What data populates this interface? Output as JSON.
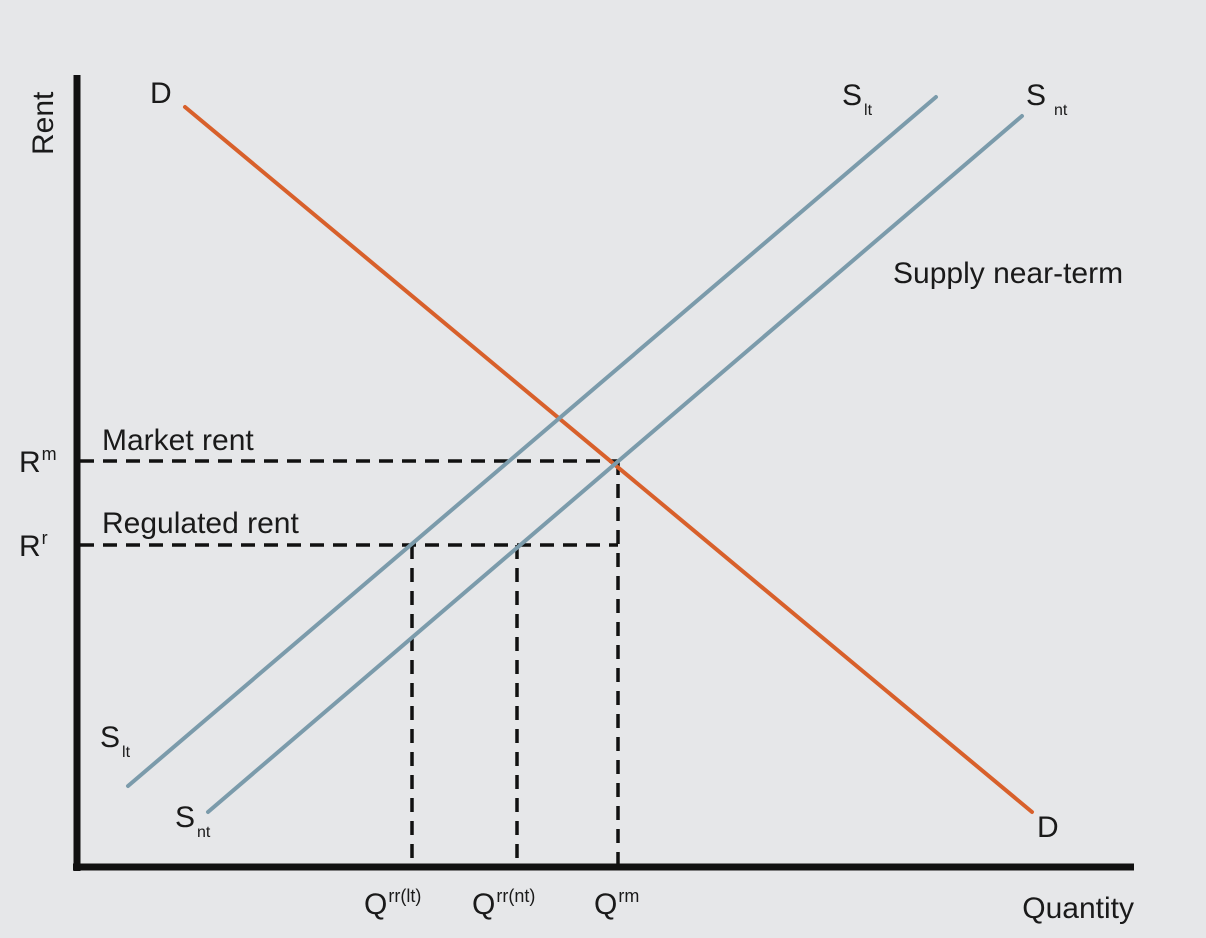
{
  "axes": {
    "y_label": "Rent",
    "x_label": "Quantity"
  },
  "colors": {
    "demand": "#d8602b",
    "supply": "#7b9bab",
    "axis": "#111111",
    "background": "#e6e7e9"
  },
  "curves": {
    "demand": {
      "main": "D",
      "sub": ""
    },
    "supply_long_term": {
      "main": "S",
      "sub": "lt"
    },
    "supply_near_term": {
      "main": "S",
      "sub": "nt"
    }
  },
  "annotations": {
    "supply_near_term": "Supply near-term",
    "market_rent": "Market rent",
    "regulated_rent": "Regulated rent"
  },
  "y_ticks": {
    "market": {
      "main": "R",
      "sup": "m"
    },
    "regulated": {
      "main": "R",
      "sup": "r"
    }
  },
  "x_ticks": {
    "q_rr_lt": {
      "main": "Q",
      "sup": "rr(lt)"
    },
    "q_rr_nt": {
      "main": "Q",
      "sup": "rr(nt)"
    },
    "q_rm": {
      "main": "Q",
      "sup": "rm"
    }
  }
}
